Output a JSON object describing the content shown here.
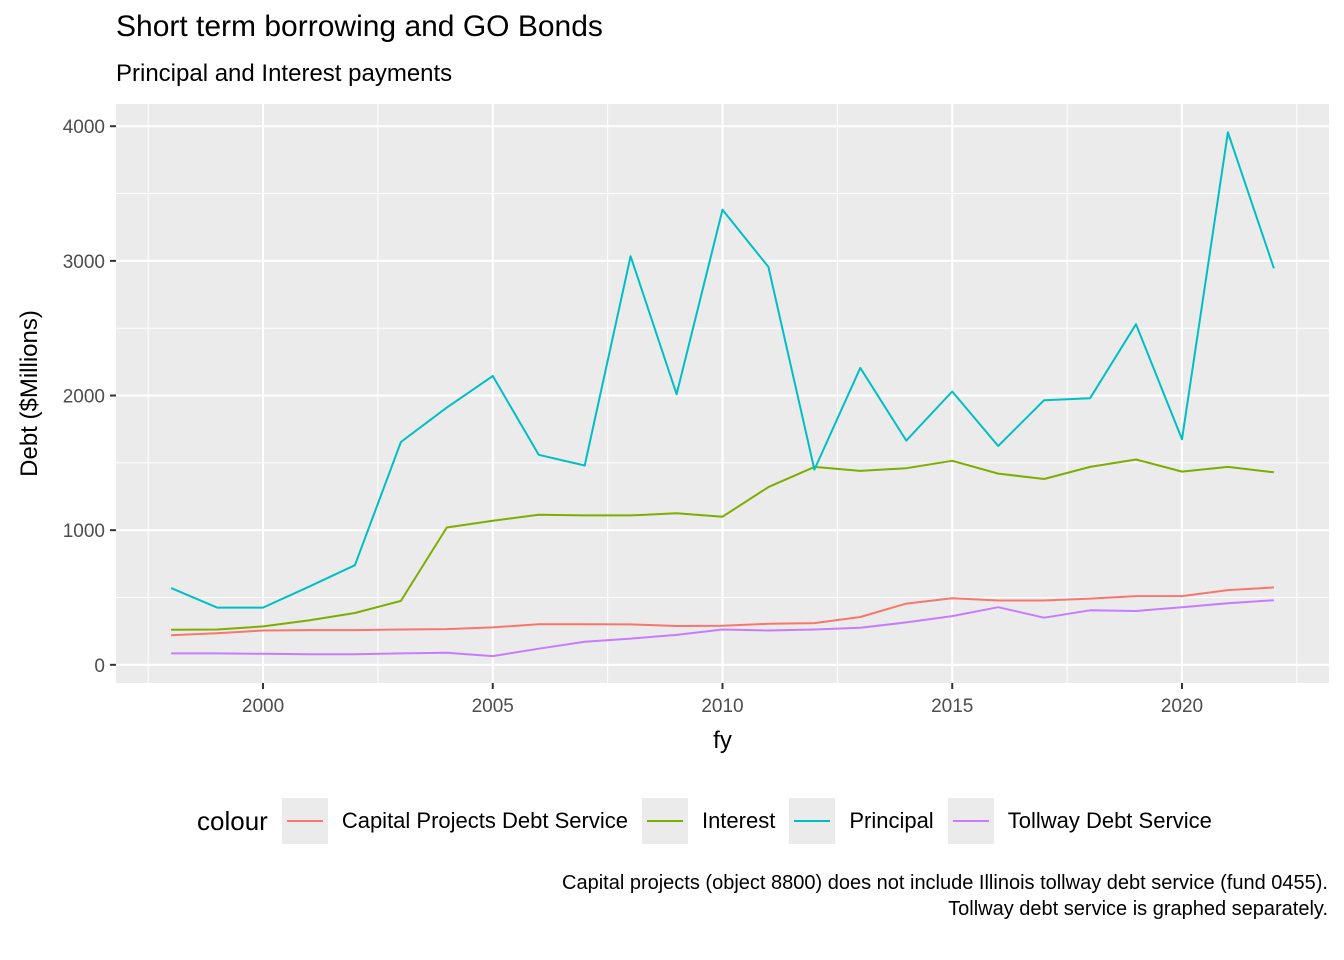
{
  "title": "Short term borrowing and GO Bonds",
  "subtitle": "Principal and Interest payments",
  "caption": {
    "line1": "Capital projects (object 8800) does not include Illinois tollway debt service (fund 0455).",
    "line2": "Tollway debt service is graphed separately."
  },
  "legend": {
    "title": "colour",
    "position": "bottom"
  },
  "chart_data": {
    "type": "line",
    "xlabel": "fy",
    "ylabel": "Debt ($Millions)",
    "xlim": [
      1996.8,
      2023.2
    ],
    "ylim": [
      -135,
      4165
    ],
    "x_ticks": [
      2000,
      2005,
      2010,
      2015,
      2020
    ],
    "y_ticks": [
      0,
      1000,
      2000,
      3000,
      4000
    ],
    "grid": true,
    "background": "#ebebeb",
    "x": [
      1998,
      1999,
      2000,
      2001,
      2002,
      2003,
      2004,
      2005,
      2006,
      2007,
      2008,
      2009,
      2010,
      2011,
      2012,
      2013,
      2014,
      2015,
      2016,
      2017,
      2018,
      2019,
      2020,
      2021,
      2022
    ],
    "series": [
      {
        "name": "Capital Projects Debt Service",
        "color": "#f8766d",
        "values": [
          220,
          235,
          255,
          258,
          258,
          262,
          265,
          278,
          302,
          302,
          300,
          288,
          290,
          305,
          310,
          355,
          455,
          495,
          478,
          478,
          492,
          510,
          510,
          555,
          575
        ]
      },
      {
        "name": "Interest",
        "color": "#7cae00",
        "values": [
          260,
          262,
          285,
          330,
          385,
          475,
          1020,
          1070,
          1115,
          1110,
          1110,
          1125,
          1100,
          1320,
          1470,
          1440,
          1460,
          1515,
          1420,
          1380,
          1470,
          1525,
          1435,
          1470,
          1430
        ]
      },
      {
        "name": "Principal",
        "color": "#00bfc4",
        "values": [
          570,
          425,
          425,
          580,
          740,
          1655,
          1910,
          2145,
          1560,
          1480,
          3035,
          2010,
          3380,
          2955,
          1450,
          2205,
          1665,
          2030,
          1625,
          1965,
          1980,
          2530,
          1675,
          3955,
          2945
        ]
      },
      {
        "name": "Tollway Debt Service",
        "color": "#c77cff",
        "values": [
          85,
          85,
          82,
          78,
          78,
          85,
          90,
          65,
          120,
          172,
          195,
          222,
          262,
          255,
          262,
          275,
          315,
          362,
          428,
          350,
          405,
          400,
          428,
          458,
          480
        ]
      }
    ]
  }
}
